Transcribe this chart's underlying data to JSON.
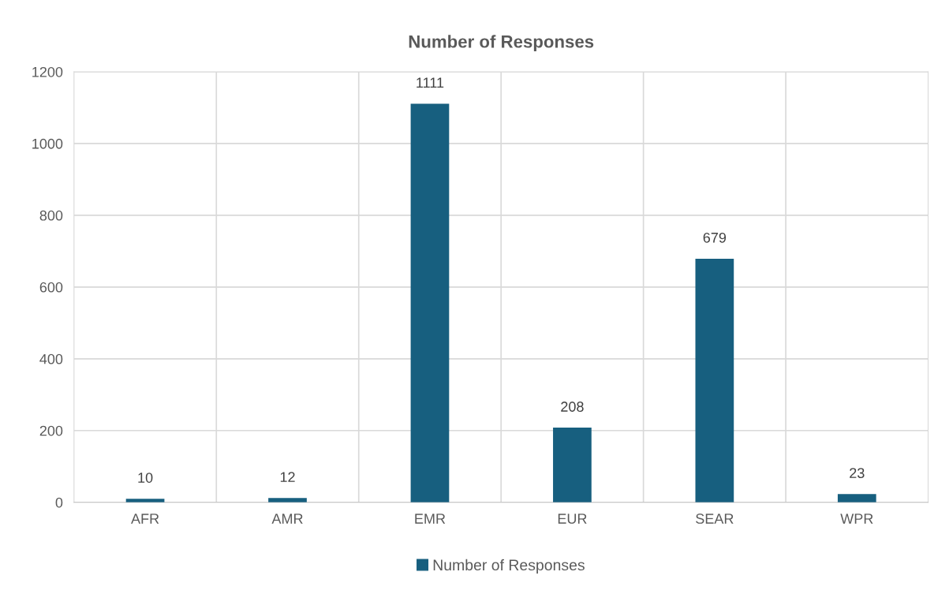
{
  "chart_data": {
    "type": "bar",
    "title": "Number of Responses",
    "categories": [
      "AFR",
      "AMR",
      "EMR",
      "EUR",
      "SEAR",
      "WPR"
    ],
    "series": [
      {
        "name": "Number of Responses",
        "color": "#175f7f",
        "values": [
          10,
          12,
          1111,
          208,
          679,
          23
        ]
      }
    ],
    "ylim": [
      0,
      1200
    ],
    "yticks": [
      0,
      200,
      400,
      600,
      800,
      1000,
      1200
    ],
    "grid": true,
    "legend": "bottom",
    "data_labels": true
  }
}
